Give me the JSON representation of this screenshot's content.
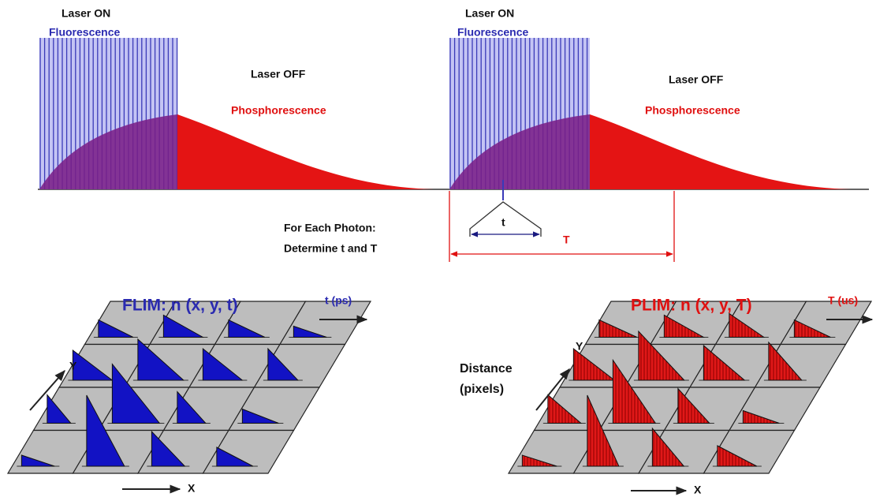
{
  "pulses": [
    {
      "laser_on": "Laser ON",
      "fluorescence": "Fluorescence",
      "laser_off": "Laser OFF",
      "phosphorescence": "Phosphorescence"
    },
    {
      "laser_on": "Laser ON",
      "fluorescence": "Fluorescence",
      "laser_off": "Laser OFF",
      "phosphorescence": "Phosphorescence"
    }
  ],
  "timing": {
    "line1": "For Each Photon:",
    "line2": "Determine t and T",
    "t_label": "t",
    "T_label": "T"
  },
  "flim": {
    "title": "FLIM: n (x, y, t)",
    "time_axis": "t (ps)",
    "y_axis": "Y",
    "x_axis": "X"
  },
  "plim": {
    "title": "PLIM: n (x, y, T)",
    "time_axis": "T (us)",
    "y_axis": "Y",
    "x_axis": "X"
  },
  "distance": {
    "line1": "Distance",
    "line2": "(pixels)"
  }
}
